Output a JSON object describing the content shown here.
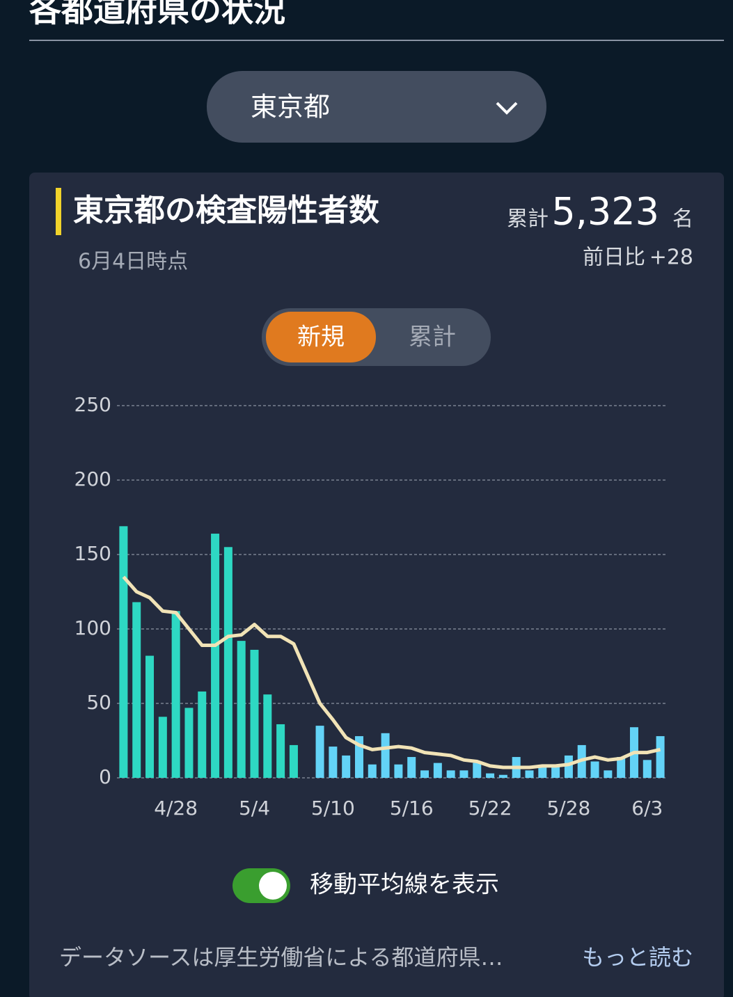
{
  "header": {
    "title": "各都道府県の状況"
  },
  "selector": {
    "selected": "東京都"
  },
  "card": {
    "title": "東京都の検査陽性者数",
    "as_of": "6月4日時点",
    "total_label": "累計",
    "total": "5,323",
    "total_unit": "名",
    "change_label": "前日比",
    "change": "+28"
  },
  "tabs": [
    "新規",
    "累計"
  ],
  "active_tab": 0,
  "chart_data": {
    "type": "bar",
    "categories": [
      null,
      null,
      null,
      null,
      "4/28",
      null,
      null,
      null,
      null,
      null,
      "5/4",
      null,
      null,
      null,
      null,
      null,
      "5/10",
      null,
      null,
      null,
      null,
      null,
      "5/16",
      null,
      null,
      null,
      null,
      null,
      "5/22",
      null,
      null,
      null,
      null,
      null,
      "5/28",
      null,
      null,
      null,
      null,
      null,
      "6/3",
      null
    ],
    "series": [
      {
        "color": "#2ed8c3",
        "values": [
          169,
          118,
          82,
          41,
          112,
          47,
          58,
          164,
          155,
          92,
          86,
          56,
          36,
          22,
          null,
          null,
          null,
          null,
          null,
          null,
          null,
          null,
          null,
          null,
          null,
          null,
          null,
          null,
          null,
          null,
          null,
          null,
          null,
          null,
          null,
          null,
          null,
          null,
          null,
          null,
          null,
          null
        ]
      },
      {
        "color": "#63d3f7",
        "values": [
          null,
          null,
          null,
          null,
          null,
          null,
          null,
          null,
          null,
          null,
          null,
          null,
          null,
          null,
          null,
          35,
          21,
          15,
          28,
          9,
          30,
          9,
          14,
          5,
          10,
          5,
          5,
          10,
          3,
          2,
          14,
          5,
          8,
          8,
          15,
          22,
          11,
          5,
          14,
          34,
          12,
          28
        ]
      },
      {
        "type": "line",
        "color": "#f1e3b6",
        "values": [
          135,
          125,
          121,
          112,
          111,
          100,
          89,
          89,
          95,
          96,
          103,
          95,
          95,
          90,
          70,
          50,
          39,
          27,
          22,
          19,
          20,
          21,
          20,
          17,
          16,
          15,
          12,
          11,
          8,
          7,
          7,
          7,
          8,
          8,
          9,
          12,
          14,
          12,
          13,
          17,
          17,
          19
        ]
      }
    ],
    "ylim": [
      0,
      250
    ],
    "yticks": [
      0,
      50,
      100,
      150,
      200,
      250
    ],
    "grid": true
  },
  "toggle": {
    "label": "移動平均線を表示",
    "on": true
  },
  "footer": {
    "source": "データソースは厚生労働省による都道府県…",
    "more": "もっと読む"
  }
}
